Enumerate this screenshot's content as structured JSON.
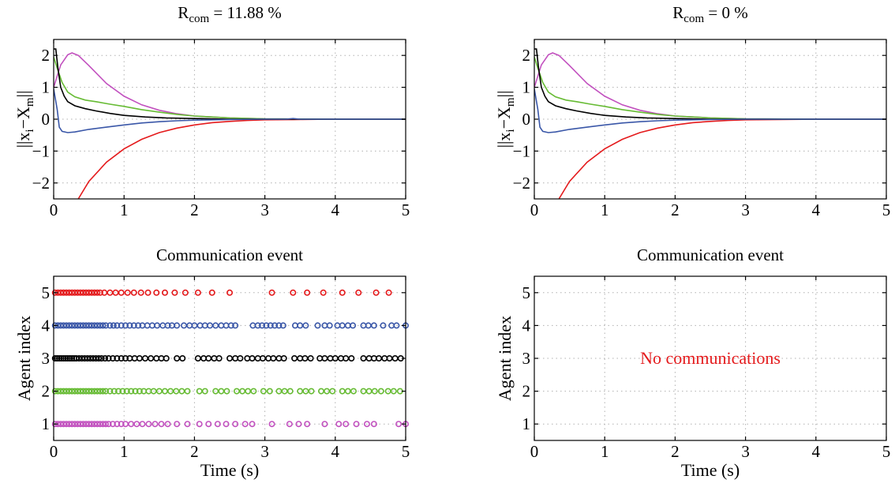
{
  "chart_data": [
    {
      "id": "top-left",
      "type": "line",
      "title_main": "R",
      "title_sub": "com",
      "title_rest": " = 11.88 %",
      "ylabel_main": "||x",
      "ylabel_sub1": "i",
      "ylabel_mid": "−X",
      "ylabel_sub2": "m",
      "ylabel_end": "||",
      "xlabel": "",
      "xlim": [
        0,
        5
      ],
      "ylim": [
        -2.5,
        2.5
      ],
      "xticks": [
        "0",
        "1",
        "2",
        "3",
        "4",
        "5"
      ],
      "yticks": [
        "−2",
        "−1",
        "0",
        "1",
        "2"
      ],
      "grid": true,
      "series": [
        {
          "color": "#e41a1c",
          "x": [
            0.35,
            0.5,
            0.75,
            1.0,
            1.25,
            1.5,
            1.75,
            2.0,
            2.25,
            2.5,
            2.75,
            3.0,
            3.5,
            4.0,
            5.0
          ],
          "y": [
            -2.5,
            -1.95,
            -1.35,
            -0.93,
            -0.63,
            -0.42,
            -0.28,
            -0.18,
            -0.11,
            -0.07,
            -0.04,
            -0.02,
            -0.01,
            0.0,
            0.0
          ]
        },
        {
          "color": "#c251bf",
          "x": [
            0.0,
            0.1,
            0.2,
            0.26,
            0.35,
            0.5,
            0.75,
            1.0,
            1.25,
            1.5,
            1.75,
            2.0,
            2.5,
            3.0,
            4.0,
            5.0
          ],
          "y": [
            1.0,
            1.7,
            2.02,
            2.08,
            2.0,
            1.68,
            1.12,
            0.72,
            0.45,
            0.28,
            0.17,
            0.1,
            0.04,
            0.01,
            0.0,
            0.0
          ]
        },
        {
          "color": "#66bb33",
          "x": [
            0.0,
            0.05,
            0.12,
            0.2,
            0.3,
            0.45,
            0.6,
            0.8,
            1.0,
            1.25,
            1.5,
            1.75,
            2.0,
            2.5,
            3.0,
            4.0,
            5.0
          ],
          "y": [
            1.95,
            1.6,
            1.15,
            0.85,
            0.7,
            0.6,
            0.55,
            0.47,
            0.4,
            0.3,
            0.22,
            0.15,
            0.1,
            0.04,
            0.01,
            0.0,
            0.0
          ]
        },
        {
          "color": "#000000",
          "x": [
            0.0,
            0.03,
            0.06,
            0.1,
            0.15,
            0.2,
            0.3,
            0.45,
            0.6,
            0.8,
            1.0,
            1.3,
            1.6,
            2.0,
            2.5,
            3.0,
            5.0
          ],
          "y": [
            2.2,
            2.2,
            1.6,
            1.0,
            0.72,
            0.55,
            0.42,
            0.33,
            0.26,
            0.18,
            0.12,
            0.07,
            0.04,
            0.02,
            0.0,
            0.0,
            0.0
          ]
        },
        {
          "color": "#3a57a8",
          "x": [
            0.0,
            0.05,
            0.08,
            0.12,
            0.2,
            0.3,
            0.5,
            0.75,
            1.0,
            1.25,
            1.5,
            1.75,
            2.0,
            2.5,
            3.0,
            3.3,
            3.4,
            3.5,
            4.0,
            5.0
          ],
          "y": [
            0.95,
            0.3,
            -0.25,
            -0.38,
            -0.42,
            -0.4,
            -0.32,
            -0.25,
            -0.18,
            -0.12,
            -0.08,
            -0.05,
            -0.03,
            -0.01,
            0.0,
            0.0,
            0.02,
            0.0,
            0.0,
            0.0
          ]
        }
      ]
    },
    {
      "id": "top-right",
      "type": "line",
      "title_main": "R",
      "title_sub": "com",
      "title_rest": " = 0 %",
      "ylabel_main": "||x",
      "ylabel_sub1": "i",
      "ylabel_mid": "−X",
      "ylabel_sub2": "m",
      "ylabel_end": "||",
      "xlabel": "",
      "xlim": [
        0,
        5
      ],
      "ylim": [
        -2.5,
        2.5
      ],
      "xticks": [
        "0",
        "1",
        "2",
        "3",
        "4",
        "5"
      ],
      "yticks": [
        "−2",
        "−1",
        "0",
        "1",
        "2"
      ],
      "grid": true,
      "series": [
        {
          "color": "#e41a1c",
          "x": [
            0.35,
            0.5,
            0.75,
            1.0,
            1.25,
            1.5,
            1.75,
            2.0,
            2.25,
            2.5,
            2.75,
            3.0,
            3.5,
            4.0,
            5.0
          ],
          "y": [
            -2.5,
            -1.95,
            -1.35,
            -0.93,
            -0.63,
            -0.42,
            -0.28,
            -0.18,
            -0.11,
            -0.07,
            -0.04,
            -0.02,
            -0.01,
            0.0,
            0.0
          ]
        },
        {
          "color": "#c251bf",
          "x": [
            0.0,
            0.1,
            0.2,
            0.26,
            0.35,
            0.5,
            0.75,
            1.0,
            1.25,
            1.5,
            1.75,
            2.0,
            2.5,
            3.0,
            4.0,
            5.0
          ],
          "y": [
            1.0,
            1.7,
            2.02,
            2.08,
            2.0,
            1.68,
            1.12,
            0.72,
            0.45,
            0.28,
            0.17,
            0.1,
            0.04,
            0.01,
            0.0,
            0.0
          ]
        },
        {
          "color": "#66bb33",
          "x": [
            0.0,
            0.05,
            0.12,
            0.2,
            0.3,
            0.45,
            0.6,
            0.8,
            1.0,
            1.25,
            1.5,
            1.75,
            2.0,
            2.5,
            3.0,
            4.0,
            5.0
          ],
          "y": [
            1.95,
            1.6,
            1.15,
            0.85,
            0.7,
            0.6,
            0.55,
            0.47,
            0.4,
            0.3,
            0.22,
            0.15,
            0.1,
            0.04,
            0.01,
            0.0,
            0.0
          ]
        },
        {
          "color": "#000000",
          "x": [
            0.0,
            0.03,
            0.06,
            0.1,
            0.15,
            0.2,
            0.3,
            0.45,
            0.6,
            0.8,
            1.0,
            1.3,
            1.6,
            2.0,
            2.5,
            3.0,
            5.0
          ],
          "y": [
            2.2,
            2.2,
            1.6,
            1.0,
            0.72,
            0.55,
            0.42,
            0.33,
            0.26,
            0.18,
            0.12,
            0.07,
            0.04,
            0.02,
            0.0,
            0.0,
            0.0
          ]
        },
        {
          "color": "#3a57a8",
          "x": [
            0.0,
            0.05,
            0.08,
            0.12,
            0.2,
            0.3,
            0.5,
            0.75,
            1.0,
            1.25,
            1.5,
            1.75,
            2.0,
            2.5,
            3.0,
            4.0,
            5.0
          ],
          "y": [
            0.95,
            0.3,
            -0.25,
            -0.38,
            -0.42,
            -0.4,
            -0.32,
            -0.25,
            -0.18,
            -0.12,
            -0.08,
            -0.05,
            -0.03,
            -0.01,
            0.0,
            0.0,
            0.0
          ]
        }
      ]
    },
    {
      "id": "bottom-left",
      "type": "scatter",
      "title": "Communication event",
      "xlabel": "Time (s)",
      "ylabel": "Agent index",
      "xlim": [
        0,
        5
      ],
      "ylim": [
        0.5,
        5.5
      ],
      "xticks": [
        "0",
        "1",
        "2",
        "3",
        "4",
        "5"
      ],
      "yticks": [
        "1",
        "2",
        "3",
        "4",
        "5"
      ],
      "grid": true,
      "series": [
        {
          "agent": 5,
          "color": "#e41a1c",
          "x": [
            0.02,
            0.06,
            0.1,
            0.14,
            0.18,
            0.22,
            0.26,
            0.3,
            0.34,
            0.38,
            0.42,
            0.46,
            0.5,
            0.54,
            0.58,
            0.62,
            0.66,
            0.72,
            0.8,
            0.88,
            0.96,
            1.05,
            1.14,
            1.24,
            1.34,
            1.46,
            1.58,
            1.72,
            1.87,
            2.05,
            2.25,
            2.5,
            3.1,
            3.4,
            3.6,
            3.83,
            4.1,
            4.33,
            4.58,
            4.76
          ]
        },
        {
          "agent": 4,
          "color": "#3a57a8",
          "x": [
            0.02,
            0.06,
            0.1,
            0.14,
            0.18,
            0.22,
            0.26,
            0.3,
            0.34,
            0.38,
            0.42,
            0.46,
            0.5,
            0.54,
            0.58,
            0.62,
            0.66,
            0.7,
            0.74,
            0.8,
            0.85,
            0.9,
            0.96,
            1.02,
            1.08,
            1.14,
            1.2,
            1.26,
            1.33,
            1.4,
            1.47,
            1.55,
            1.62,
            1.68,
            1.75,
            1.85,
            1.93,
            2.0,
            2.08,
            2.15,
            2.22,
            2.3,
            2.38,
            2.45,
            2.52,
            2.58,
            2.83,
            2.9,
            2.96,
            3.02,
            3.08,
            3.14,
            3.2,
            3.26,
            3.43,
            3.5,
            3.58,
            3.75,
            3.85,
            3.92,
            4.03,
            4.1,
            4.18,
            4.25,
            4.4,
            4.47,
            4.55,
            4.68,
            4.8,
            4.87,
            5.0
          ]
        },
        {
          "agent": 3,
          "color": "#000000",
          "x": [
            0.02,
            0.05,
            0.08,
            0.11,
            0.14,
            0.17,
            0.2,
            0.23,
            0.26,
            0.29,
            0.32,
            0.36,
            0.4,
            0.44,
            0.48,
            0.52,
            0.56,
            0.6,
            0.64,
            0.68,
            0.73,
            0.78,
            0.84,
            0.9,
            0.96,
            1.02,
            1.08,
            1.15,
            1.22,
            1.3,
            1.38,
            1.46,
            1.53,
            1.6,
            1.75,
            1.83,
            2.05,
            2.13,
            2.2,
            2.28,
            2.35,
            2.5,
            2.58,
            2.65,
            2.75,
            2.82,
            2.9,
            2.97,
            3.05,
            3.12,
            3.2,
            3.27,
            3.42,
            3.5,
            3.57,
            3.65,
            3.78,
            3.85,
            3.93,
            4.0,
            4.08,
            4.15,
            4.23,
            4.4,
            4.48,
            4.55,
            4.62,
            4.7,
            4.77,
            4.85,
            4.93
          ]
        },
        {
          "agent": 2,
          "color": "#66bb33",
          "x": [
            0.02,
            0.06,
            0.1,
            0.14,
            0.18,
            0.22,
            0.26,
            0.3,
            0.34,
            0.38,
            0.42,
            0.46,
            0.5,
            0.54,
            0.58,
            0.62,
            0.66,
            0.7,
            0.74,
            0.8,
            0.86,
            0.92,
            0.98,
            1.04,
            1.1,
            1.16,
            1.22,
            1.28,
            1.35,
            1.42,
            1.5,
            1.58,
            1.66,
            1.74,
            1.82,
            1.9,
            2.07,
            2.15,
            2.3,
            2.38,
            2.46,
            2.6,
            2.68,
            2.76,
            2.84,
            2.98,
            3.07,
            3.2,
            3.28,
            3.36,
            3.5,
            3.58,
            3.66,
            3.8,
            3.88,
            3.96,
            4.1,
            4.18,
            4.26,
            4.4,
            4.48,
            4.56,
            4.65,
            4.75,
            4.83,
            4.92
          ]
        },
        {
          "agent": 1,
          "color": "#c251bf",
          "x": [
            0.02,
            0.06,
            0.1,
            0.14,
            0.18,
            0.22,
            0.26,
            0.3,
            0.34,
            0.38,
            0.42,
            0.46,
            0.5,
            0.54,
            0.58,
            0.62,
            0.66,
            0.7,
            0.74,
            0.78,
            0.84,
            0.9,
            0.96,
            1.02,
            1.1,
            1.18,
            1.26,
            1.35,
            1.44,
            1.53,
            1.62,
            1.75,
            1.9,
            2.07,
            2.2,
            2.33,
            2.45,
            2.58,
            2.72,
            2.82,
            3.1,
            3.35,
            3.48,
            3.6,
            3.85,
            4.05,
            4.15,
            4.3,
            4.45,
            4.55,
            4.9,
            5.0
          ]
        }
      ]
    },
    {
      "id": "bottom-right",
      "type": "scatter",
      "title": "Communication event",
      "xlabel": "Time (s)",
      "ylabel": "Agent index",
      "xlim": [
        0,
        5
      ],
      "ylim": [
        0.5,
        5.5
      ],
      "xticks": [
        "0",
        "1",
        "2",
        "3",
        "4",
        "5"
      ],
      "yticks": [
        "1",
        "2",
        "3",
        "4",
        "5"
      ],
      "grid": true,
      "annotation": "No  communications",
      "annotation_color": "#e41a1c",
      "series": []
    }
  ]
}
